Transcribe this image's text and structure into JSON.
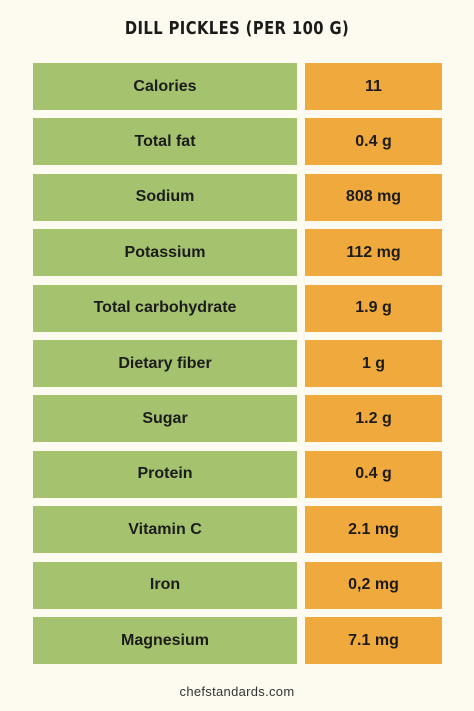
{
  "title": "DILL PICKLES (PER 100 G)",
  "table": {
    "rows": [
      [
        "Calories",
        "11"
      ],
      [
        "Total fat",
        "0.4 g"
      ],
      [
        "Sodium",
        "808 mg"
      ],
      [
        "Potassium",
        "112 mg"
      ],
      [
        "Total carbohydrate",
        "1.9 g"
      ],
      [
        "Dietary fiber",
        "1 g"
      ],
      [
        "Sugar",
        "1.2 g"
      ],
      [
        "Protein",
        "0.4 g"
      ],
      [
        "Vitamin C",
        "2.1 mg"
      ],
      [
        "Iron",
        "0,2 mg"
      ],
      [
        "Magnesium",
        "7.1 mg"
      ]
    ]
  },
  "footer": "chefstandards.com"
}
